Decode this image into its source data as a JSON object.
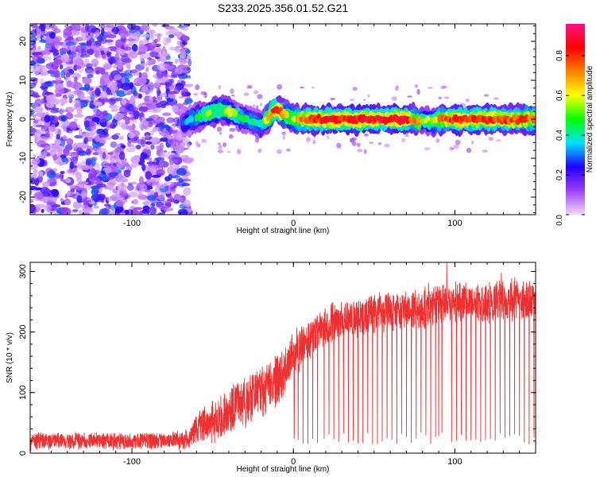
{
  "title": "S233.2025.356.01.52.G21",
  "chart_data": [
    {
      "type": "heatmap",
      "title": "S233.2025.356.01.52.G21",
      "xlabel": "Height of straight line (km)",
      "ylabel": "Frequency (Hz)",
      "xlim": [
        -163,
        150
      ],
      "ylim": [
        -24.5,
        24.5
      ],
      "xticks": [
        -100,
        0,
        100
      ],
      "yticks": [
        -20,
        -10,
        0,
        10,
        20
      ],
      "colorbar": {
        "label": "Normalized spectral amplitude",
        "range": [
          0.0,
          0.96
        ],
        "ticks": [
          0.0,
          0.2,
          0.4,
          0.6,
          0.8
        ],
        "tick_labels": [
          "0.0",
          "0.2",
          "0.4",
          "0.6",
          "0.8"
        ],
        "colormap": [
          "#f0d8f8",
          "#a040f8",
          "#2000ff",
          "#00e0ff",
          "#00ff00",
          "#ffff00",
          "#ff8000",
          "#ff0000",
          "#ff1080"
        ]
      },
      "noise_region_x": [
        -163,
        -68
      ],
      "signal_track": {
        "x": [
          -68,
          -60,
          -52,
          -45,
          -40,
          -35,
          -30,
          -25,
          -20,
          -16,
          -12,
          -8,
          -4,
          0,
          10,
          30,
          50,
          70,
          85,
          90,
          100,
          120,
          150
        ],
        "freq": [
          -1,
          0.5,
          1.5,
          2.5,
          2,
          1,
          0,
          -0.5,
          -1.5,
          0,
          2.5,
          2,
          1,
          0,
          0,
          0,
          0,
          0,
          -0.5,
          0,
          0,
          0,
          0
        ],
        "peak_amplitude": [
          0.3,
          0.45,
          0.55,
          0.6,
          0.55,
          0.5,
          0.45,
          0.4,
          0.4,
          0.6,
          0.85,
          0.8,
          0.6,
          0.65,
          0.8,
          0.85,
          0.85,
          0.85,
          0.5,
          0.7,
          0.85,
          0.8,
          0.75
        ]
      }
    },
    {
      "type": "line",
      "xlabel": "Height of straight line (km)",
      "ylabel": "SNR (10 * v/v)",
      "xlim": [
        -163,
        150
      ],
      "ylim": [
        0,
        315
      ],
      "xticks": [
        -100,
        0,
        100
      ],
      "yticks": [
        0,
        100,
        200,
        300
      ],
      "line_color": "#ee3030",
      "envelope": {
        "x": [
          -163,
          -120,
          -80,
          -65,
          -60,
          -50,
          -40,
          -30,
          -20,
          -10,
          -5,
          0,
          5,
          10,
          15,
          20,
          30,
          40,
          50,
          60,
          70,
          80,
          90,
          100,
          110,
          120,
          130,
          140,
          150
        ],
        "mean": [
          20,
          20,
          20,
          22,
          40,
          55,
          70,
          85,
          100,
          120,
          140,
          160,
          175,
          190,
          200,
          210,
          220,
          225,
          230,
          235,
          235,
          240,
          245,
          245,
          250,
          250,
          255,
          255,
          250
        ],
        "spread": [
          12,
          12,
          12,
          14,
          25,
          30,
          35,
          40,
          40,
          40,
          35,
          35,
          30,
          28,
          28,
          28,
          28,
          28,
          28,
          28,
          28,
          30,
          30,
          30,
          30,
          30,
          32,
          32,
          32
        ]
      },
      "dropouts": [
        0.5,
        3,
        6,
        9,
        12,
        15,
        19,
        22,
        25,
        28,
        31,
        34,
        37,
        40,
        43,
        46,
        49,
        52,
        55,
        58,
        61,
        64,
        67,
        70,
        73,
        76,
        79,
        82,
        85,
        88,
        90,
        92,
        95,
        98,
        101,
        104,
        107,
        110,
        113,
        116,
        119,
        122,
        125,
        128,
        131,
        134,
        137,
        140,
        143,
        146,
        149
      ],
      "dropout_min": 15,
      "peak": {
        "x": 95,
        "y": 315
      }
    }
  ]
}
